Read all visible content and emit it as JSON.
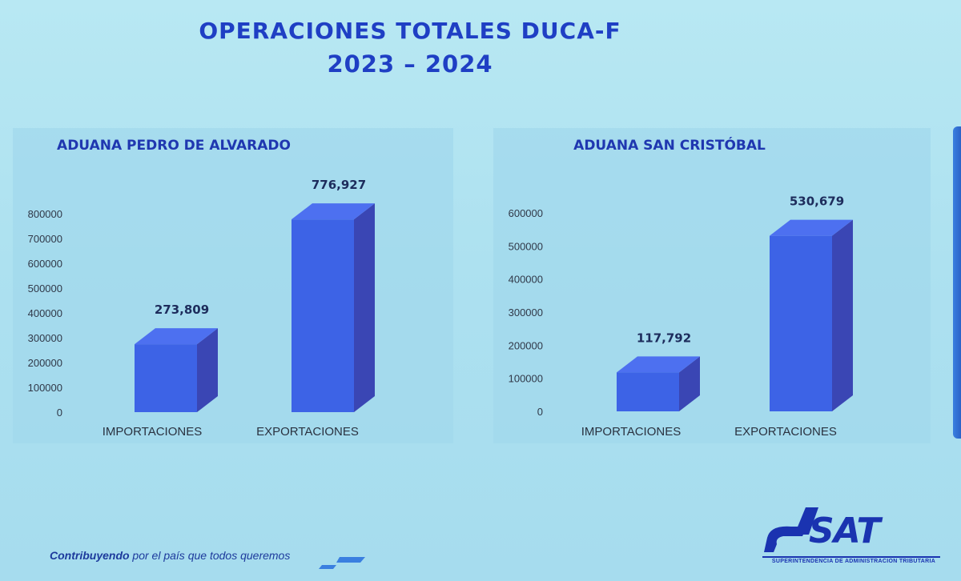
{
  "title": {
    "line1": "OPERACIONES TOTALES DUCA-F",
    "line2": "2023 – 2024"
  },
  "chart_data": [
    {
      "type": "bar",
      "title": "ADUANA PEDRO DE ALVARADO",
      "categories": [
        "IMPORTACIONES",
        "EXPORTACIONES"
      ],
      "values": [
        273809,
        776927
      ],
      "value_labels": [
        "273,809",
        "776,927"
      ],
      "ylim": [
        0,
        800000
      ],
      "yticks": [
        "0",
        "100000",
        "200000",
        "300000",
        "400000",
        "500000",
        "600000",
        "700000",
        "800000"
      ],
      "grid": false,
      "legend": "none",
      "bar_color": "#3d63e6"
    },
    {
      "type": "bar",
      "title": "ADUANA SAN CRISTÓBAL",
      "categories": [
        "IMPORTACIONES",
        "EXPORTACIONES"
      ],
      "values": [
        117792,
        530679
      ],
      "value_labels": [
        "117,792",
        "530,679"
      ],
      "ylim": [
        0,
        600000
      ],
      "yticks": [
        "0",
        "100000",
        "200000",
        "300000",
        "400000",
        "500000",
        "600000"
      ],
      "grid": false,
      "legend": "none",
      "bar_color": "#3d63e6"
    }
  ],
  "footer": {
    "bold": "Contribuyendo",
    "rest": " por el país que todos queremos"
  },
  "logo": {
    "name": "SAT",
    "subtitle": "SUPERINTENDENCIA DE ADMINISTRACION TRIBUTARIA"
  },
  "colors": {
    "title": "#1f3fc4",
    "bar_front": "#3d63e6",
    "bar_side": "#3a46b4",
    "bar_top": "#4d70f0"
  }
}
